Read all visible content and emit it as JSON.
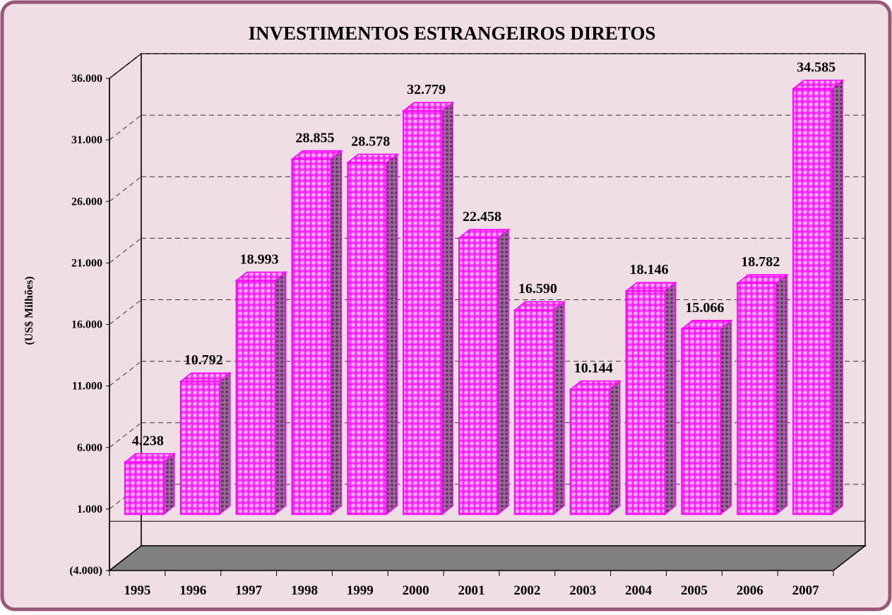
{
  "chart_data": {
    "type": "bar3d",
    "title": "INVESTIMENTOS ESTRANGEIROS DIRETOS",
    "y_label": "(US$ Milhões)",
    "categories": [
      "1995",
      "1996",
      "1997",
      "1998",
      "1999",
      "2000",
      "2001",
      "2002",
      "2003",
      "2004",
      "2005",
      "2006",
      "2007"
    ],
    "values": [
      4238,
      10792,
      18993,
      28855,
      28578,
      32779,
      22458,
      16590,
      10144,
      18146,
      15066,
      18782,
      34585
    ],
    "value_labels": [
      "4.238",
      "10.792",
      "18.993",
      "28.855",
      "28.578",
      "32.779",
      "22.458",
      "16.590",
      "10.144",
      "18.146",
      "15.066",
      "18.782",
      "34.585"
    ],
    "color": "#ff00ff",
    "ylim": [
      -4000,
      36000
    ],
    "yticks": [
      {
        "value": -4000,
        "label": "(4.000)"
      },
      {
        "value": 1000,
        "label": "1.000"
      },
      {
        "value": 6000,
        "label": "6.000"
      },
      {
        "value": 11000,
        "label": "11.000"
      },
      {
        "value": 16000,
        "label": "16.000"
      },
      {
        "value": 21000,
        "label": "21.000"
      },
      {
        "value": 26000,
        "label": "26.000"
      },
      {
        "value": 31000,
        "label": "31.000"
      },
      {
        "value": 36000,
        "label": "36.000"
      }
    ],
    "grid": true
  }
}
